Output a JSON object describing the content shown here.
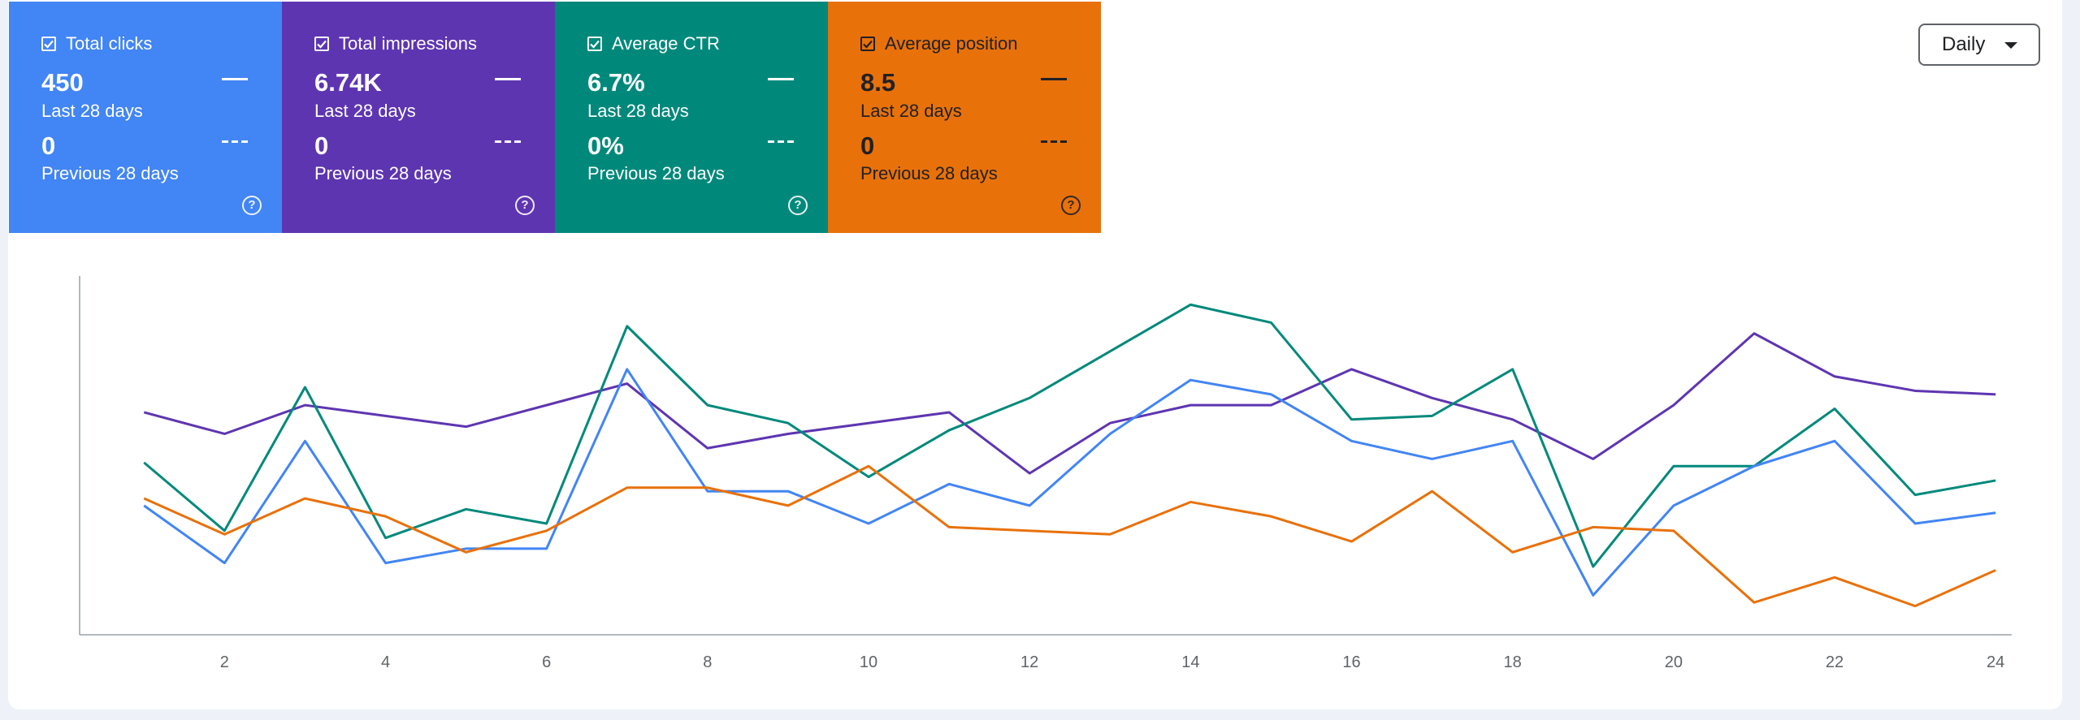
{
  "metric_cards": [
    {
      "title": "Total clicks",
      "value": "450",
      "period": "Last 28 days",
      "prev_value": "0",
      "prev_period": "Previous 28 days",
      "color": "#4285f4",
      "text_color": "#ffffff"
    },
    {
      "title": "Total impressions",
      "value": "6.74K",
      "period": "Last 28 days",
      "prev_value": "0",
      "prev_period": "Previous 28 days",
      "color": "#5e35b1",
      "text_color": "#ffffff"
    },
    {
      "title": "Average CTR",
      "value": "6.7%",
      "period": "Last 28 days",
      "prev_value": "0%",
      "prev_period": "Previous 28 days",
      "color": "#00897b",
      "text_color": "#ffffff"
    },
    {
      "title": "Average position",
      "value": "8.5",
      "period": "Last 28 days",
      "prev_value": "0",
      "prev_period": "Previous 28 days",
      "color": "#e8710a",
      "text_color": "#202124"
    }
  ],
  "granularity": {
    "label": "Daily",
    "icon": "caret-down-icon"
  },
  "help_icon": "help-circle-icon",
  "chart_data": {
    "type": "line",
    "x": [
      1,
      2,
      3,
      4,
      5,
      6,
      7,
      8,
      9,
      10,
      11,
      12,
      13,
      14,
      15,
      16,
      17,
      18,
      19,
      20,
      21,
      22,
      23,
      24
    ],
    "xticks": [
      2,
      4,
      6,
      8,
      10,
      12,
      14,
      16,
      18,
      20,
      22,
      24
    ],
    "xlim": [
      0.2,
      24.2
    ],
    "ylim": [
      0,
      10
    ],
    "yaxis_labels": false,
    "grid": false,
    "series": [
      {
        "name": "Total impressions",
        "color": "#5e35b1",
        "values": [
          6.2,
          5.6,
          6.4,
          6.1,
          5.8,
          6.4,
          7.0,
          5.2,
          5.6,
          5.9,
          6.2,
          4.5,
          5.9,
          6.4,
          6.4,
          7.4,
          6.6,
          6.0,
          4.9,
          6.4,
          8.4,
          7.2,
          6.8,
          6.7
        ]
      },
      {
        "name": "Average CTR",
        "color": "#00897b",
        "values": [
          4.8,
          2.9,
          6.9,
          2.7,
          3.5,
          3.1,
          8.6,
          6.4,
          5.9,
          4.4,
          5.7,
          6.6,
          7.9,
          9.2,
          8.7,
          6.0,
          6.1,
          7.4,
          1.9,
          4.7,
          4.7,
          6.3,
          3.9,
          4.3
        ]
      },
      {
        "name": "Total clicks",
        "color": "#4285f4",
        "values": [
          3.6,
          2.0,
          5.4,
          2.0,
          2.4,
          2.4,
          7.4,
          4.0,
          4.0,
          3.1,
          4.2,
          3.6,
          5.6,
          7.1,
          6.7,
          5.4,
          4.9,
          5.4,
          1.1,
          3.6,
          4.7,
          5.4,
          3.1,
          3.4
        ]
      },
      {
        "name": "Average position",
        "color": "#e8710a",
        "values": [
          3.8,
          2.8,
          3.8,
          3.3,
          2.3,
          2.9,
          4.1,
          4.1,
          3.6,
          4.7,
          3.0,
          2.9,
          2.8,
          3.7,
          3.3,
          2.6,
          4.0,
          2.3,
          3.0,
          2.9,
          0.9,
          1.6,
          0.8,
          1.8
        ]
      }
    ]
  }
}
